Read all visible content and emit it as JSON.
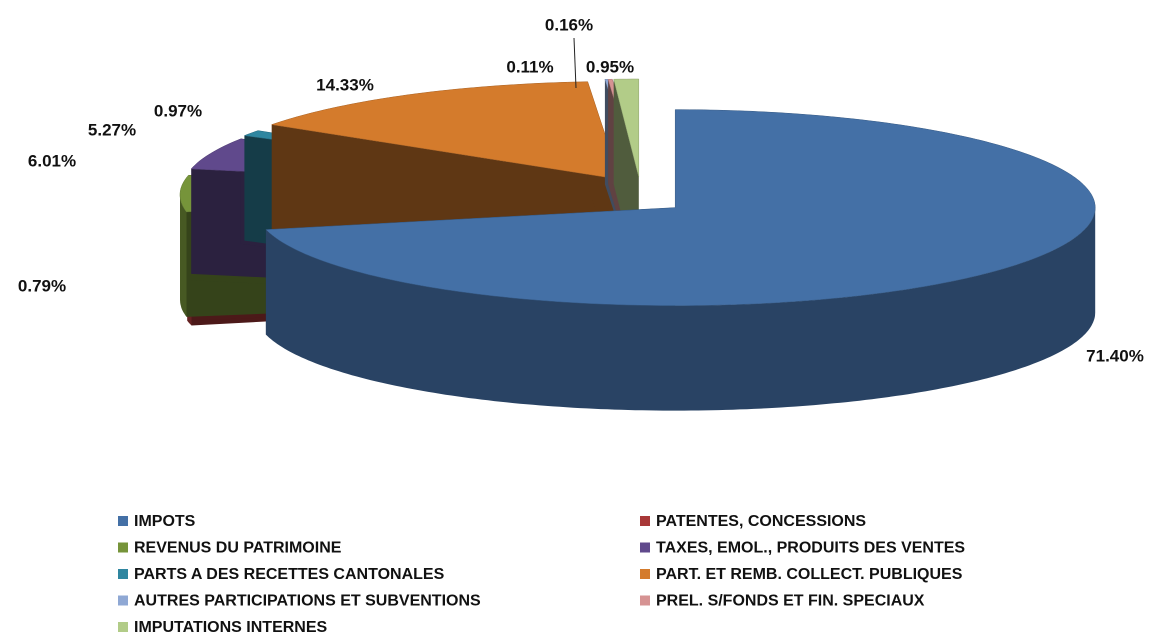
{
  "chart_data": {
    "type": "pie",
    "categories": [
      "IMPOTS",
      "PATENTES, CONCESSIONS",
      "REVENUS DU PATRIMOINE",
      "TAXES, EMOL., PRODUITS DES VENTES",
      "PARTS A DES RECETTES CANTONALES",
      "PART. ET REMB. COLLECT. PUBLIQUES",
      "AUTRES PARTICIPATIONS ET SUBVENTIONS",
      "PREL. S/FONDS ET FIN. SPECIAUX",
      "IMPUTATIONS INTERNES"
    ],
    "values": [
      71.4,
      0.79,
      6.01,
      5.27,
      0.97,
      14.33,
      0.11,
      0.16,
      0.95
    ],
    "value_labels": [
      "71.40%",
      "0.79%",
      "6.01%",
      "5.27%",
      "0.97%",
      "14.33%",
      "0.11%",
      "0.16%",
      "0.95%"
    ],
    "colors": [
      "#4470a6",
      "#a83838",
      "#76943a",
      "#60498c",
      "#2f86a0",
      "#d47b2c",
      "#8fa8d4",
      "#d69393",
      "#b2cc88"
    ],
    "legend": "bottom"
  }
}
